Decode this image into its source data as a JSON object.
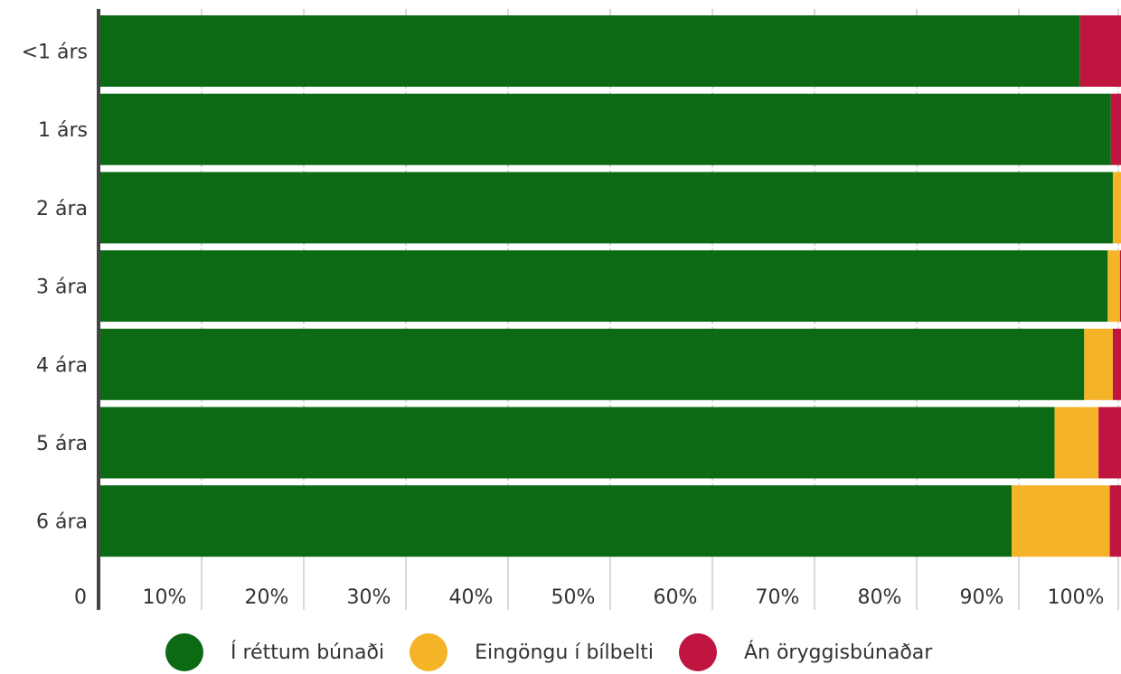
{
  "chart_data": {
    "type": "bar",
    "orientation": "horizontal",
    "stacked": true,
    "categories": [
      "<1 árs",
      "1 árs",
      "2 ára",
      "3 ára",
      "4 ára",
      "5 ára",
      "6 ára"
    ],
    "series": [
      {
        "name": "Í réttum búnaði",
        "color": "#0b6a13",
        "values": [
          96.0,
          99.0,
          99.2,
          98.7,
          96.4,
          93.5,
          89.3
        ]
      },
      {
        "name": "Eingöngu í bílbelti",
        "color": "#f5b427",
        "values": [
          0.0,
          0.0,
          0.8,
          1.2,
          2.8,
          4.3,
          9.6
        ]
      },
      {
        "name": "Án öryggisbúnaðar",
        "color": "#bf1540",
        "values": [
          4.0,
          1.0,
          0.0,
          0.1,
          0.8,
          2.2,
          1.1
        ]
      }
    ],
    "x_ticks": [
      "0",
      "10%",
      "20%",
      "30%",
      "40%",
      "50%",
      "60%",
      "70%",
      "80%",
      "90%",
      "100%"
    ],
    "xlim": [
      0,
      100
    ],
    "grid": true,
    "legend_position": "bottom"
  }
}
